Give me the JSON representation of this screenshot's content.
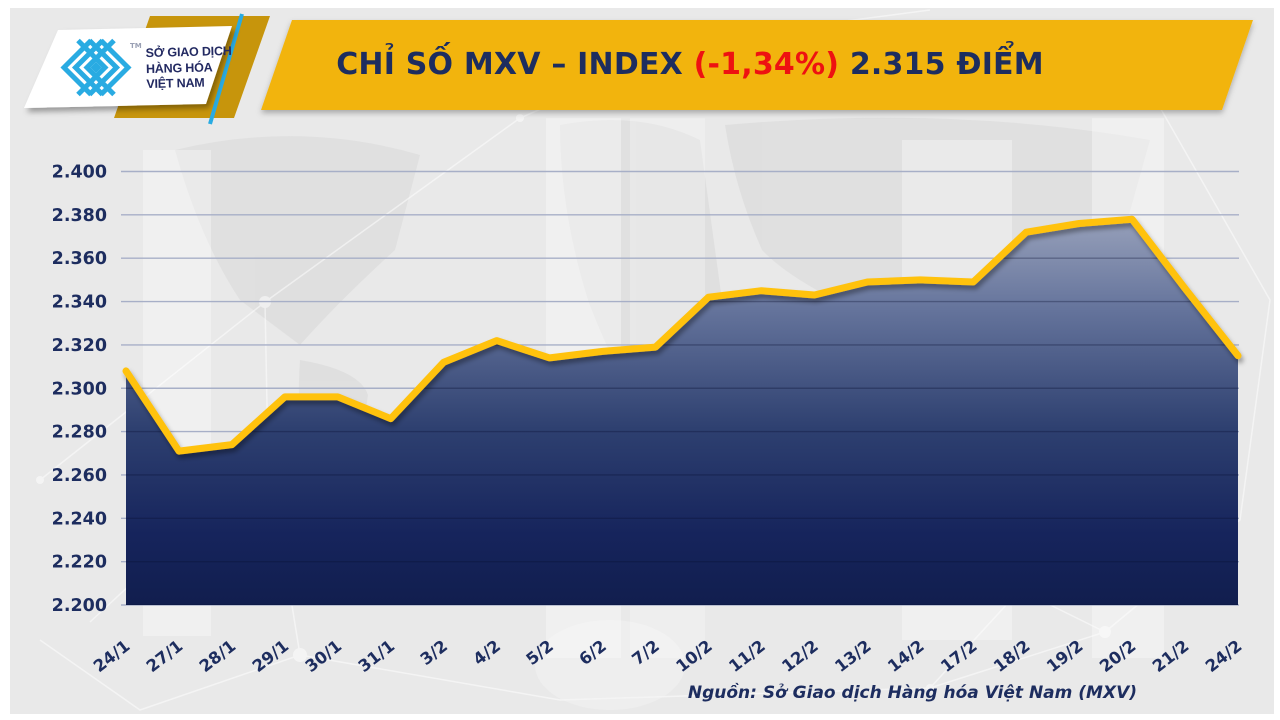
{
  "header": {
    "logo": {
      "org_lines": [
        "SỞ GIAO DỊCH",
        "HÀNG HÓA",
        "VIỆT NAM"
      ],
      "trademark": "TM"
    },
    "title": {
      "prefix": "CHỈ SỐ MXV – INDEX ",
      "change": "(-1,34%)",
      "suffix": " 2.315 ĐIỂM"
    }
  },
  "footer": {
    "source": "Nguồn: Sở Giao dịch Hàng hóa Việt Nam (MXV)"
  },
  "colors": {
    "banner_gold": "#F2B40C",
    "under_gold": "#C7950C",
    "line_gold": "#FFC20E",
    "navy": "#1D2D5F",
    "red": "#EE1111",
    "cyan": "#29ABE2",
    "gridline": "#A7AFC7",
    "area_top": "#9AA3BC",
    "area_bottom": "#111E4E"
  },
  "chart_data": {
    "type": "area",
    "title": "CHỈ SỐ MXV – INDEX (-1,34%) 2.315 ĐIỂM",
    "change_percent": "-1,34%",
    "latest_value_label": "2.315",
    "unit": "điểm",
    "categories": [
      "24/1",
      "27/1",
      "28/1",
      "29/1",
      "30/1",
      "31/1",
      "3/2",
      "4/2",
      "5/2",
      "6/2",
      "7/2",
      "10/2",
      "11/2",
      "12/2",
      "13/2",
      "14/2",
      "17/2",
      "18/2",
      "19/2",
      "20/2",
      "21/2",
      "24/2"
    ],
    "values": [
      2308,
      2271,
      2274,
      2296,
      2296,
      2286,
      2312,
      2322,
      2314,
      2317,
      2319,
      2342,
      2345,
      2343,
      2349,
      2350,
      2349,
      2372,
      2376,
      2378,
      2346,
      2315
    ],
    "xlabel": "",
    "ylabel": "",
    "ylim": [
      2200,
      2400
    ],
    "ytick_step": 20,
    "ytick_labels": [
      "2.200",
      "2.220",
      "2.240",
      "2.260",
      "2.280",
      "2.300",
      "2.320",
      "2.340",
      "2.360",
      "2.380",
      "2.400"
    ],
    "grid": true,
    "legend": false
  }
}
